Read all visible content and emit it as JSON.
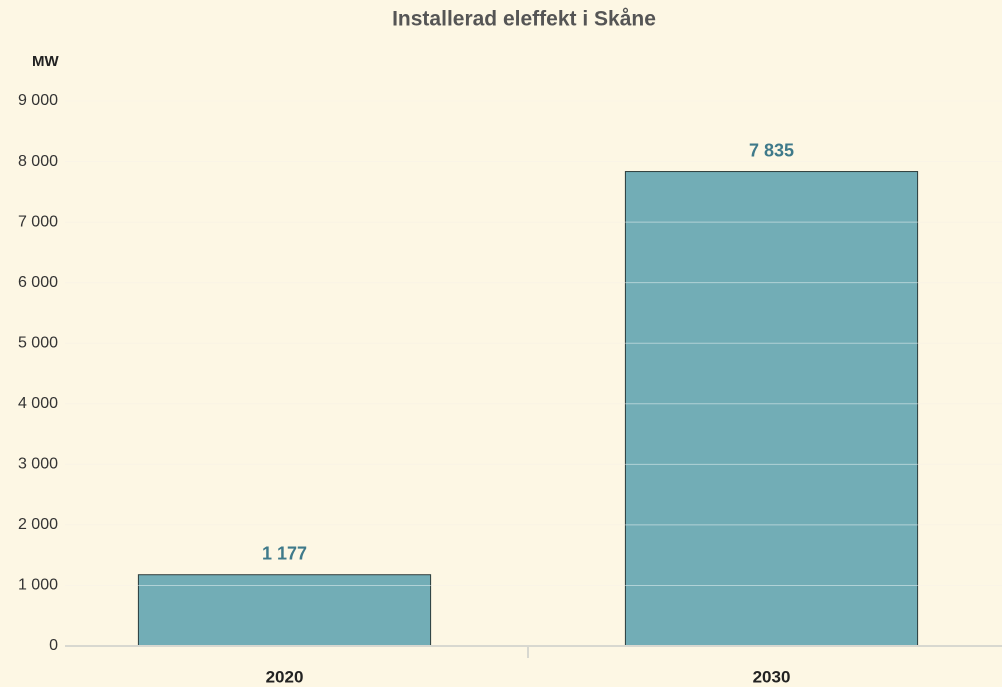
{
  "chart_data": {
    "type": "bar",
    "title": "Installerad eleffekt i Skåne",
    "y_label": "MW",
    "categories": [
      "2020",
      "2030"
    ],
    "values": [
      1177,
      7835
    ],
    "value_labels": [
      "1 177",
      "7 835"
    ],
    "color": "#72adb6",
    "ylim": [
      0,
      9000
    ],
    "yticks": [
      0,
      {
        "value": 1000,
        "label": "1 000"
      },
      {
        "value": 2000,
        "label": "2 000"
      },
      {
        "value": 3000,
        "label": "3 000"
      },
      {
        "value": 4000,
        "label": "4 000"
      },
      {
        "value": 5000,
        "label": "5 000"
      },
      {
        "value": 6000,
        "label": "6 000"
      },
      {
        "value": 7000,
        "label": "7 000"
      },
      {
        "value": 8000,
        "label": "8 000"
      },
      {
        "value": 9000,
        "label": "9 000"
      }
    ],
    "grid": true
  }
}
